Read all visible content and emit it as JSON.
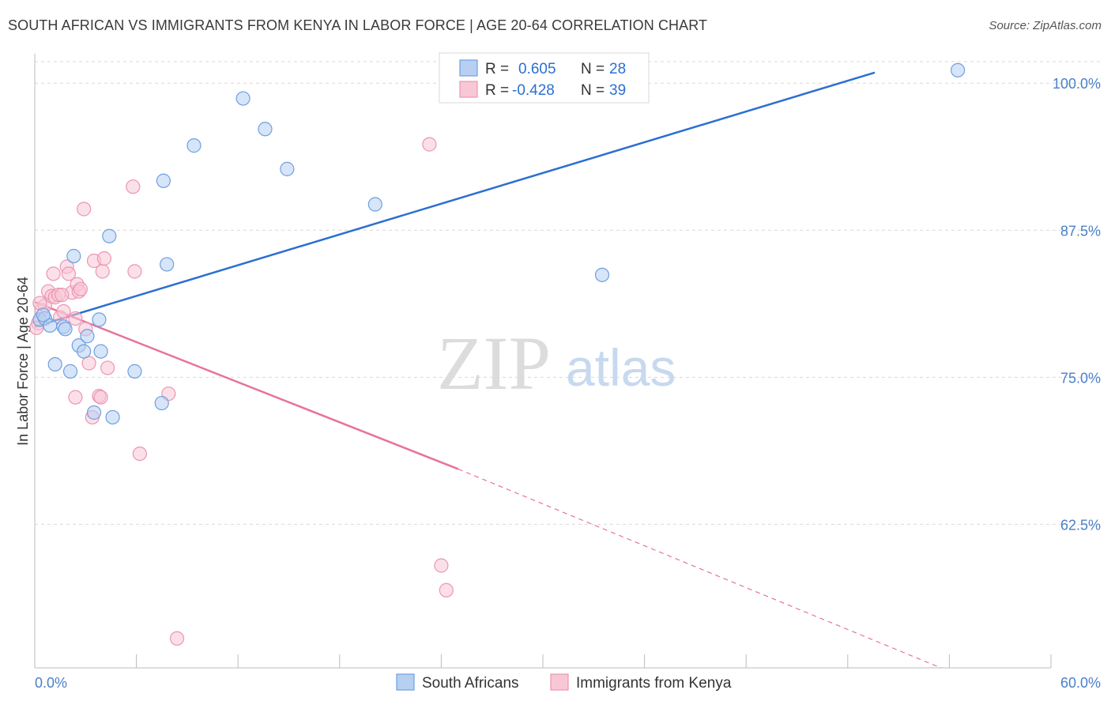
{
  "title": "SOUTH AFRICAN VS IMMIGRANTS FROM KENYA IN LABOR FORCE | AGE 20-64 CORRELATION CHART",
  "source": "Source: ZipAtlas.com",
  "watermark": {
    "zip": "ZIP",
    "atlas": "atlas"
  },
  "colors": {
    "blue": "#2b6fd1",
    "blue_fill": "#b7d0f2",
    "blue_stroke": "#6f9fe0",
    "pink": "#e8729c",
    "pink_fill": "#f8c7d6",
    "pink_stroke": "#ec95b2",
    "axis_text": "#4a7fc9",
    "grid": "#d9d9d9"
  },
  "legend": {
    "rows": [
      {
        "r_label": "R = ",
        "r_value": "0.605",
        "n_label": "N = ",
        "n_value": "28",
        "color": "blue"
      },
      {
        "r_label": "R = ",
        "r_value": "-0.428",
        "n_label": "N = ",
        "n_value": "39",
        "color": "pink"
      }
    ]
  },
  "chart_data": {
    "type": "scatter",
    "title": "SOUTH AFRICAN VS IMMIGRANTS FROM KENYA IN LABOR FORCE | AGE 20-64 CORRELATION CHART",
    "xlabel": "",
    "ylabel": "In Labor Force | Age 20-64",
    "xlim": [
      0,
      60
    ],
    "ylim": [
      50.3,
      102.5
    ],
    "x_tick_labels": [
      "0.0%",
      "60.0%"
    ],
    "y_ticks": [
      100,
      87.5,
      75,
      62.5
    ],
    "y_tick_labels": [
      "100.0%",
      "87.5%",
      "75.0%",
      "62.5%"
    ],
    "grid": true,
    "legend_position": "top-center",
    "series": [
      {
        "name": "South Africans",
        "color": "blue",
        "points": [
          [
            0.3,
            79.9
          ],
          [
            0.6,
            80.0
          ],
          [
            0.9,
            79.4
          ],
          [
            1.2,
            76.1
          ],
          [
            1.7,
            79.3
          ],
          [
            1.8,
            79.1
          ],
          [
            2.1,
            75.5
          ],
          [
            2.3,
            85.3
          ],
          [
            2.6,
            77.7
          ],
          [
            2.9,
            77.2
          ],
          [
            3.1,
            78.5
          ],
          [
            3.8,
            79.9
          ],
          [
            3.9,
            77.2
          ],
          [
            4.4,
            87.0
          ],
          [
            3.5,
            72.0
          ],
          [
            4.6,
            71.6
          ],
          [
            5.9,
            75.5
          ],
          [
            7.5,
            72.8
          ],
          [
            7.6,
            91.7
          ],
          [
            7.8,
            84.6
          ],
          [
            9.4,
            94.7
          ],
          [
            12.3,
            98.7
          ],
          [
            13.6,
            96.1
          ],
          [
            14.9,
            92.7
          ],
          [
            20.1,
            89.7
          ],
          [
            33.5,
            83.7
          ],
          [
            54.5,
            101.1
          ],
          [
            0.5,
            80.3
          ]
        ],
        "trend": {
          "x": [
            0,
            49.6
          ],
          "y": [
            79.3,
            100.9
          ]
        }
      },
      {
        "name": "Immigrants from Kenya",
        "color": "pink",
        "points": [
          [
            0.2,
            79.6
          ],
          [
            0.4,
            80.7
          ],
          [
            0.6,
            81.1
          ],
          [
            0.8,
            82.3
          ],
          [
            1.0,
            81.9
          ],
          [
            1.1,
            83.8
          ],
          [
            1.2,
            81.8
          ],
          [
            1.4,
            82.0
          ],
          [
            1.5,
            80.1
          ],
          [
            1.7,
            80.6
          ],
          [
            1.9,
            84.4
          ],
          [
            2.0,
            83.8
          ],
          [
            2.2,
            82.2
          ],
          [
            2.4,
            80.0
          ],
          [
            2.5,
            82.9
          ],
          [
            2.6,
            82.3
          ],
          [
            2.7,
            82.5
          ],
          [
            2.9,
            89.3
          ],
          [
            3.0,
            79.1
          ],
          [
            3.2,
            76.2
          ],
          [
            3.4,
            71.6
          ],
          [
            3.5,
            84.9
          ],
          [
            3.8,
            73.4
          ],
          [
            3.9,
            73.3
          ],
          [
            4.0,
            84.0
          ],
          [
            4.1,
            85.1
          ],
          [
            4.3,
            75.8
          ],
          [
            5.8,
            91.2
          ],
          [
            5.9,
            84.0
          ],
          [
            6.2,
            68.5
          ],
          [
            7.9,
            73.6
          ],
          [
            8.4,
            52.8
          ],
          [
            23.3,
            94.8
          ],
          [
            24.0,
            59.0
          ],
          [
            24.3,
            56.9
          ],
          [
            0.3,
            81.3
          ],
          [
            2.4,
            73.3
          ],
          [
            0.1,
            79.2
          ],
          [
            1.6,
            82.0
          ]
        ],
        "trend": {
          "x": [
            0,
            25.0
          ],
          "y": [
            81.4,
            67.2
          ]
        },
        "trend_dashed": {
          "x": [
            25.0,
            53.5
          ],
          "y": [
            67.2,
            50.3
          ]
        }
      }
    ]
  },
  "bottom_legend": [
    {
      "label": "South Africans",
      "color": "blue"
    },
    {
      "label": "Immigrants from Kenya",
      "color": "pink"
    }
  ]
}
